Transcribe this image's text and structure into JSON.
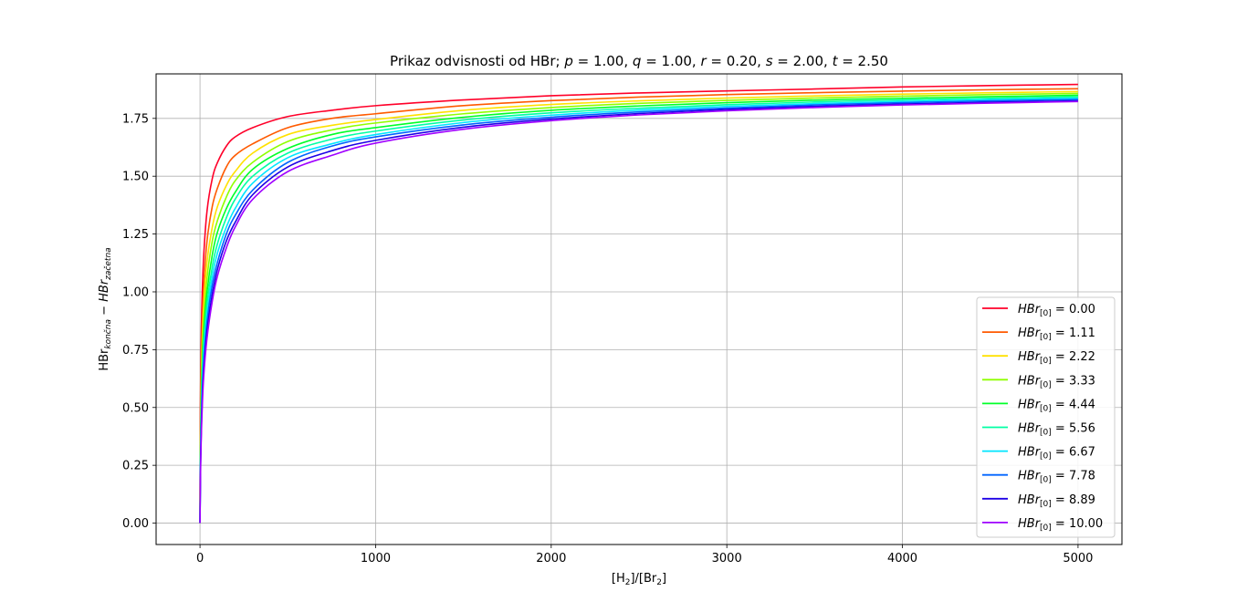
{
  "chart_data": {
    "type": "line",
    "title_parts": [
      {
        "text": "Prikaz odvisnosti od HBr; ",
        "italic": false
      },
      {
        "text": "p",
        "italic": true
      },
      {
        "text": " = 1.00, ",
        "italic": false
      },
      {
        "text": "q",
        "italic": true
      },
      {
        "text": " = 1.00, ",
        "italic": false
      },
      {
        "text": "r",
        "italic": true
      },
      {
        "text": " = 0.20, ",
        "italic": false
      },
      {
        "text": "s",
        "italic": true
      },
      {
        "text": " = 2.00, ",
        "italic": false
      },
      {
        "text": "t",
        "italic": true
      },
      {
        "text": " = 2.50",
        "italic": false
      }
    ],
    "xlabel": {
      "a": "[H",
      "b": "2",
      "c": "]/[Br",
      "d": "2",
      "e": "]"
    },
    "ylabel": {
      "a": "HBr",
      "b": "končna",
      "c": " − ",
      "d": "HBr",
      "e": "začetna"
    },
    "xlim": [
      -250,
      5250
    ],
    "ylim": [
      -0.0925,
      1.9425
    ],
    "xticks": [
      0,
      1000,
      2000,
      3000,
      4000,
      5000
    ],
    "xtick_labels": [
      "0",
      "1000",
      "2000",
      "3000",
      "4000",
      "5000"
    ],
    "yticks": [
      0.0,
      0.25,
      0.5,
      0.75,
      1.0,
      1.25,
      1.5,
      1.75
    ],
    "ytick_labels": [
      "0.00",
      "0.25",
      "0.50",
      "0.75",
      "1.00",
      "1.25",
      "1.50",
      "1.75"
    ],
    "grid": true,
    "legend_position": "lower-right",
    "x": [
      0,
      2,
      5,
      10,
      20,
      40,
      70,
      100,
      150,
      200,
      300,
      500,
      750,
      1000,
      1500,
      2000,
      2500,
      3000,
      3500,
      4000,
      4500,
      5000
    ],
    "series": [
      {
        "legend_prefix": "HBr",
        "legend_sub": "[0]",
        "legend_value": " = 0.00",
        "color": "#ff0029",
        "values": [
          0.0,
          0.49,
          0.7,
          0.92,
          1.14,
          1.35,
          1.49,
          1.56,
          1.63,
          1.67,
          1.71,
          1.758,
          1.785,
          1.805,
          1.83,
          1.848,
          1.86,
          1.869,
          1.877,
          1.886,
          1.892,
          1.897
        ]
      },
      {
        "legend_prefix": "HBr",
        "legend_sub": "[0]",
        "legend_value": " = 1.11",
        "color": "#ff5a00",
        "values": [
          0.0,
          0.4,
          0.6,
          0.8,
          1.01,
          1.22,
          1.37,
          1.45,
          1.54,
          1.59,
          1.64,
          1.71,
          1.75,
          1.77,
          1.805,
          1.827,
          1.842,
          1.853,
          1.861,
          1.868,
          1.874,
          1.878
        ]
      },
      {
        "legend_prefix": "HBr",
        "legend_sub": "[0]",
        "legend_value": " = 2.22",
        "color": "#ffe100",
        "values": [
          0.0,
          0.34,
          0.53,
          0.72,
          0.93,
          1.13,
          1.28,
          1.37,
          1.46,
          1.52,
          1.6,
          1.68,
          1.72,
          1.745,
          1.785,
          1.81,
          1.826,
          1.838,
          1.847,
          1.855,
          1.861,
          1.866
        ]
      },
      {
        "legend_prefix": "HBr",
        "legend_sub": "[0]",
        "legend_value": " = 3.33",
        "color": "#8fff00",
        "values": [
          0.0,
          0.3,
          0.48,
          0.66,
          0.86,
          1.06,
          1.22,
          1.31,
          1.41,
          1.48,
          1.56,
          1.65,
          1.7,
          1.73,
          1.77,
          1.797,
          1.815,
          1.828,
          1.838,
          1.846,
          1.853,
          1.858
        ]
      },
      {
        "legend_prefix": "HBr",
        "legend_sub": "[0]",
        "legend_value": " = 4.44",
        "color": "#00ff28",
        "values": [
          0.0,
          0.26,
          0.44,
          0.61,
          0.81,
          1.0,
          1.16,
          1.26,
          1.36,
          1.43,
          1.53,
          1.62,
          1.68,
          1.71,
          1.755,
          1.785,
          1.804,
          1.818,
          1.829,
          1.837,
          1.844,
          1.85
        ]
      },
      {
        "legend_prefix": "HBr",
        "legend_sub": "[0]",
        "legend_value": " = 5.56",
        "color": "#00ffa4",
        "values": [
          0.0,
          0.23,
          0.4,
          0.57,
          0.76,
          0.95,
          1.11,
          1.21,
          1.32,
          1.4,
          1.5,
          1.6,
          1.66,
          1.695,
          1.743,
          1.774,
          1.794,
          1.809,
          1.821,
          1.83,
          1.837,
          1.843
        ]
      },
      {
        "legend_prefix": "HBr",
        "legend_sub": "[0]",
        "legend_value": " = 6.67",
        "color": "#00e6ff",
        "values": [
          0.0,
          0.21,
          0.37,
          0.53,
          0.72,
          0.9,
          1.07,
          1.17,
          1.28,
          1.36,
          1.47,
          1.58,
          1.64,
          1.68,
          1.732,
          1.764,
          1.786,
          1.802,
          1.814,
          1.823,
          1.831,
          1.837
        ]
      },
      {
        "legend_prefix": "HBr",
        "legend_sub": "[0]",
        "legend_value": " = 7.78",
        "color": "#0064ff",
        "values": [
          0.0,
          0.19,
          0.34,
          0.5,
          0.68,
          0.87,
          1.03,
          1.13,
          1.25,
          1.33,
          1.44,
          1.56,
          1.63,
          1.67,
          1.722,
          1.755,
          1.778,
          1.795,
          1.808,
          1.818,
          1.826,
          1.832
        ]
      },
      {
        "legend_prefix": "HBr",
        "legend_sub": "[0]",
        "legend_value": " = 8.89",
        "color": "#1e00e6",
        "values": [
          0.0,
          0.18,
          0.32,
          0.47,
          0.65,
          0.83,
          0.99,
          1.1,
          1.22,
          1.3,
          1.42,
          1.54,
          1.61,
          1.655,
          1.712,
          1.747,
          1.771,
          1.789,
          1.802,
          1.812,
          1.82,
          1.826
        ]
      },
      {
        "legend_prefix": "HBr",
        "legend_sub": "[0]",
        "legend_value": " = 10.00",
        "color": "#a000ff",
        "values": [
          0.0,
          0.16,
          0.3,
          0.44,
          0.62,
          0.8,
          0.96,
          1.07,
          1.19,
          1.28,
          1.4,
          1.52,
          1.59,
          1.643,
          1.703,
          1.74,
          1.765,
          1.783,
          1.797,
          1.808,
          1.816,
          1.823
        ]
      }
    ]
  }
}
